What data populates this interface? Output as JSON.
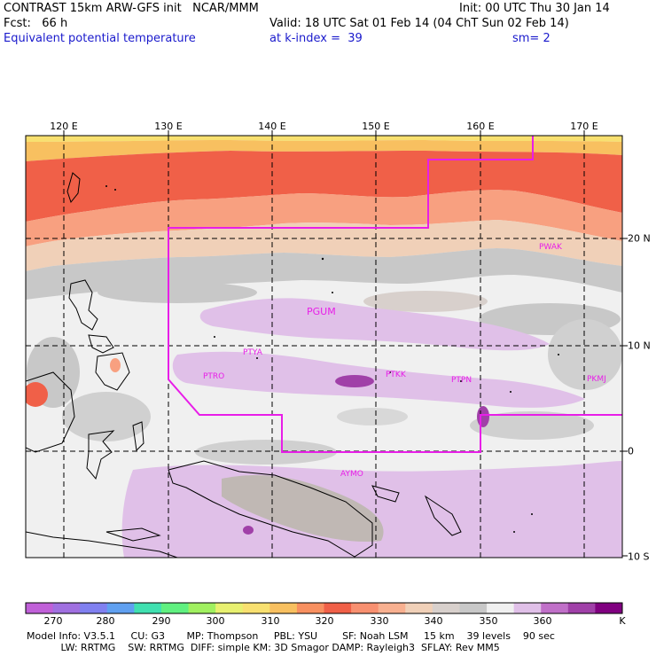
{
  "header": {
    "line1_left": "CONTRAST 15km ARW-GFS init   NCAR/MMM",
    "line1_right": "Init: 00 UTC Thu 30 Jan 14",
    "line2_left": "Fcst:   66 h",
    "line2_right": "Valid: 18 UTC Sat 01 Feb 14 (04 ChT Sun 02 Feb 14)",
    "line3_left": "Equivalent potential temperature",
    "line3_mid": "at k-index =  39",
    "line3_right": "sm= 2"
  },
  "map": {
    "lon_labels": [
      "120 E",
      "130 E",
      "140 E",
      "150 E",
      "160 E",
      "170 E"
    ],
    "lat_labels": [
      "20 N",
      "10 N",
      "0",
      "10 S"
    ],
    "stations": [
      {
        "id": "PGUM"
      },
      {
        "id": "PTYA"
      },
      {
        "id": "PTRO"
      },
      {
        "id": "PTKK"
      },
      {
        "id": "PTPN"
      },
      {
        "id": "PKMJ"
      },
      {
        "id": "PWAK"
      },
      {
        "id": "AYMO"
      }
    ],
    "boundary_color": "#e81ee8"
  },
  "colorbar": {
    "labels": [
      "270",
      "280",
      "290",
      "300",
      "310",
      "320",
      "330",
      "340",
      "350",
      "360",
      "K"
    ],
    "colors": [
      "#c060d8",
      "#a070e0",
      "#8080f0",
      "#60a0f0",
      "#40e0b0",
      "#60f080",
      "#a0f060",
      "#e8f070",
      "#f8e070",
      "#f8c060",
      "#f89060",
      "#f06048",
      "#f89070",
      "#f8b090",
      "#f0d0b8",
      "#d8d0cc",
      "#c8c8c8",
      "#f0f0f0",
      "#e0c0e8",
      "#c070c8",
      "#a040a8",
      "#800080"
    ]
  },
  "footer": {
    "line1": "Model Info: V3.5.1     CU: G3       MP: Thompson     PBL: YSU        SF: Noah LSM     15 km    39 levels    90 sec",
    "line2": "           LW: RRTMG    SW: RRTMG  DIFF: simple KM: 3D Smagor DAMP: Rayleigh3  SFLAY: Rev MM5"
  }
}
